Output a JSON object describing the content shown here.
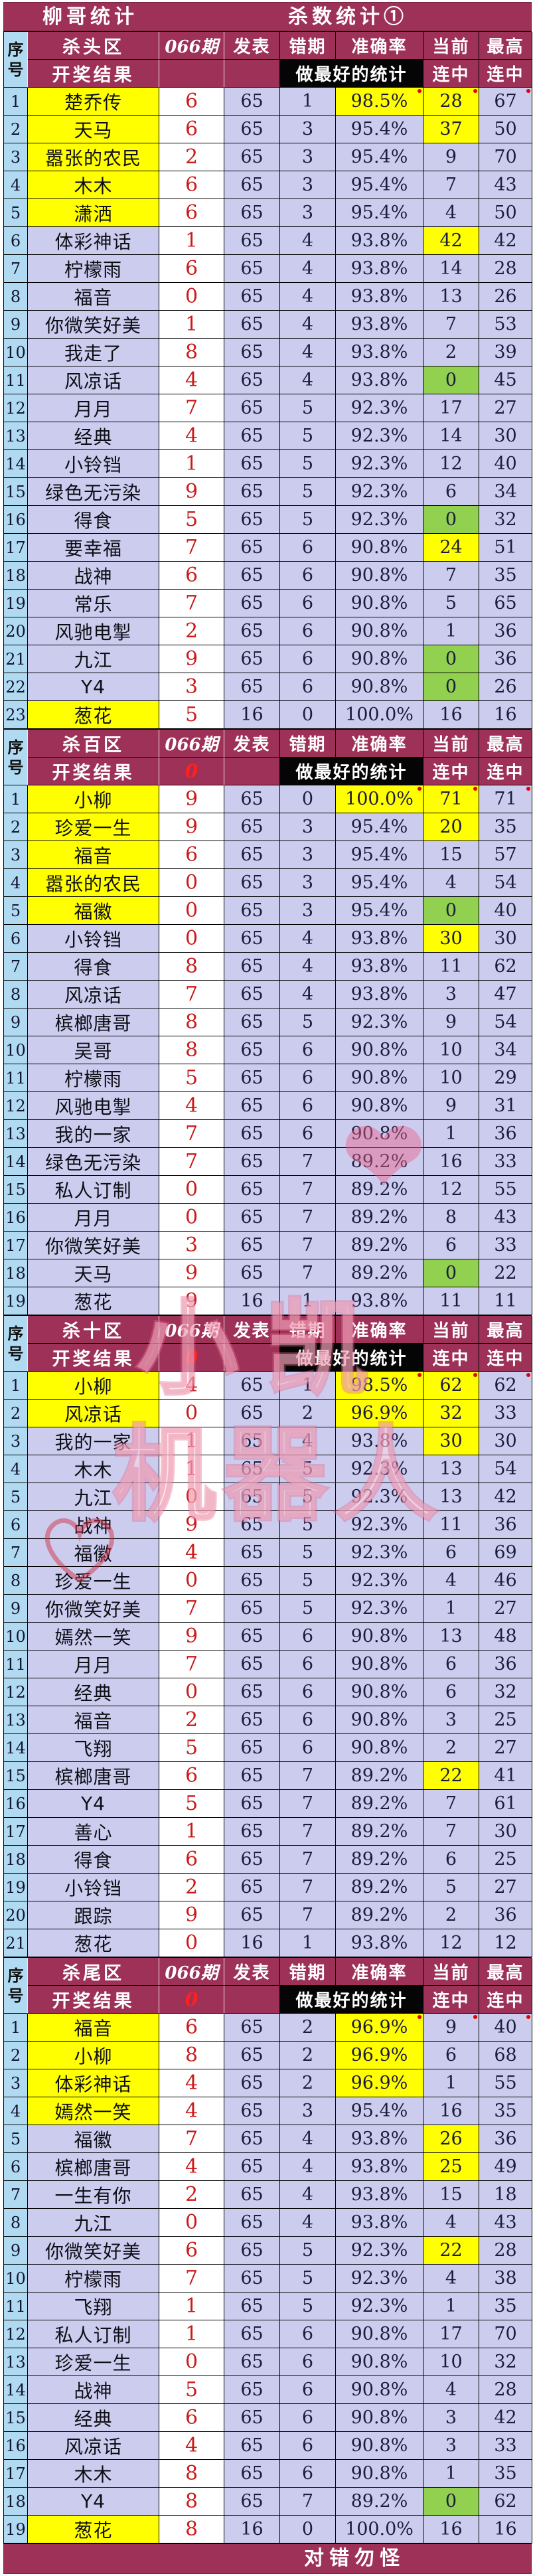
{
  "title_bar": {
    "left": "柳哥统计",
    "right": "杀数统计①"
  },
  "footer": {
    "text": "对错勿怪"
  },
  "watermark": {
    "line1": "小凯",
    "line2": "机器人",
    "heart": "❤"
  },
  "colors": {
    "header_bg": "#9D3157",
    "row_bg": "#CCCCEF",
    "seq_bg": "#B0DAF2",
    "highlight_yellow": "#FFFF00",
    "highlight_green": "#92D050",
    "kill_value_red": "#CC1A1A",
    "stat_note_bg": "#050505"
  },
  "header_labels": {
    "seq_top": "序",
    "seq_bottom": "号",
    "result": "开奖结果",
    "publish": "发表",
    "wrong": "错期",
    "accuracy": "准确率",
    "stat_note": "做最好的统计",
    "current": "当前",
    "max": "最高",
    "streak": "连中"
  },
  "sections": [
    {
      "zone": "杀头区",
      "period": "066期",
      "result_value": "",
      "rows": [
        [
          1,
          "楚乔传",
          "6",
          65,
          1,
          "98.5%",
          28,
          67,
          1,
          1,
          "y"
        ],
        [
          2,
          "天马",
          "6",
          65,
          3,
          "95.4%",
          37,
          50,
          1,
          0,
          "y"
        ],
        [
          3,
          "嚣张的农民",
          "2",
          65,
          3,
          "95.4%",
          9,
          70,
          1,
          0,
          ""
        ],
        [
          4,
          "木木",
          "6",
          65,
          3,
          "95.4%",
          7,
          43,
          1,
          0,
          ""
        ],
        [
          5,
          "潇洒",
          "6",
          65,
          3,
          "95.4%",
          4,
          50,
          1,
          0,
          ""
        ],
        [
          6,
          "体彩神话",
          "1",
          65,
          4,
          "93.8%",
          42,
          42,
          0,
          0,
          "y"
        ],
        [
          7,
          "柠檬雨",
          "6",
          65,
          4,
          "93.8%",
          14,
          28,
          0,
          0,
          ""
        ],
        [
          8,
          "福音",
          "0",
          65,
          4,
          "93.8%",
          13,
          26,
          0,
          0,
          ""
        ],
        [
          9,
          "你微笑好美",
          "1",
          65,
          4,
          "93.8%",
          7,
          53,
          0,
          0,
          ""
        ],
        [
          10,
          "我走了",
          "8",
          65,
          4,
          "93.8%",
          2,
          39,
          0,
          0,
          ""
        ],
        [
          11,
          "风凉话",
          "4",
          65,
          4,
          "93.8%",
          0,
          45,
          0,
          0,
          "g"
        ],
        [
          12,
          "月月",
          "7",
          65,
          5,
          "92.3%",
          17,
          27,
          0,
          0,
          ""
        ],
        [
          13,
          "经典",
          "4",
          65,
          5,
          "92.3%",
          14,
          30,
          0,
          0,
          ""
        ],
        [
          14,
          "小铃铛",
          "1",
          65,
          5,
          "92.3%",
          12,
          40,
          0,
          0,
          ""
        ],
        [
          15,
          "绿色无污染",
          "9",
          65,
          5,
          "92.3%",
          6,
          34,
          0,
          0,
          ""
        ],
        [
          16,
          "得食",
          "5",
          65,
          5,
          "92.3%",
          0,
          32,
          0,
          0,
          "g"
        ],
        [
          17,
          "要幸福",
          "7",
          65,
          6,
          "90.8%",
          24,
          51,
          0,
          0,
          "y"
        ],
        [
          18,
          "战神",
          "6",
          65,
          6,
          "90.8%",
          7,
          35,
          0,
          0,
          ""
        ],
        [
          19,
          "常乐",
          "7",
          65,
          6,
          "90.8%",
          5,
          65,
          0,
          0,
          ""
        ],
        [
          20,
          "风驰电掣",
          "2",
          65,
          6,
          "90.8%",
          1,
          36,
          0,
          0,
          ""
        ],
        [
          21,
          "九江",
          "9",
          65,
          6,
          "90.8%",
          0,
          36,
          0,
          0,
          "g"
        ],
        [
          22,
          "Y4",
          "3",
          65,
          6,
          "90.8%",
          0,
          26,
          0,
          0,
          "g"
        ],
        [
          23,
          "葱花",
          "5",
          16,
          0,
          "100.0%",
          16,
          16,
          1,
          0,
          ""
        ]
      ]
    },
    {
      "zone": "杀百区",
      "period": "066期",
      "result_value": "0",
      "rows": [
        [
          1,
          "小柳",
          "9",
          65,
          0,
          "100.0%",
          71,
          71,
          1,
          1,
          "y"
        ],
        [
          2,
          "珍爱一生",
          "9",
          65,
          3,
          "95.4%",
          20,
          35,
          1,
          0,
          "y"
        ],
        [
          3,
          "福音",
          "6",
          65,
          3,
          "95.4%",
          15,
          57,
          1,
          0,
          ""
        ],
        [
          4,
          "嚣张的农民",
          "0",
          65,
          3,
          "95.4%",
          4,
          54,
          1,
          0,
          ""
        ],
        [
          5,
          "福徽",
          "0",
          65,
          3,
          "95.4%",
          0,
          40,
          1,
          0,
          "g"
        ],
        [
          6,
          "小铃铛",
          "0",
          65,
          4,
          "93.8%",
          30,
          30,
          0,
          0,
          "y"
        ],
        [
          7,
          "得食",
          "8",
          65,
          4,
          "93.8%",
          11,
          62,
          0,
          0,
          ""
        ],
        [
          8,
          "风凉话",
          "7",
          65,
          4,
          "93.8%",
          3,
          47,
          0,
          0,
          ""
        ],
        [
          9,
          "槟榔唐哥",
          "8",
          65,
          5,
          "92.3%",
          9,
          54,
          0,
          0,
          ""
        ],
        [
          10,
          "吴哥",
          "8",
          65,
          6,
          "90.8%",
          10,
          34,
          0,
          0,
          ""
        ],
        [
          11,
          "柠檬雨",
          "5",
          65,
          6,
          "90.8%",
          10,
          29,
          0,
          0,
          ""
        ],
        [
          12,
          "风驰电掣",
          "4",
          65,
          6,
          "90.8%",
          9,
          31,
          0,
          0,
          ""
        ],
        [
          13,
          "我的一家",
          "7",
          65,
          6,
          "90.8%",
          1,
          36,
          0,
          0,
          ""
        ],
        [
          14,
          "绿色无污染",
          "7",
          65,
          7,
          "89.2%",
          16,
          33,
          0,
          0,
          ""
        ],
        [
          15,
          "私人订制",
          "0",
          65,
          7,
          "89.2%",
          12,
          55,
          0,
          0,
          ""
        ],
        [
          16,
          "月月",
          "0",
          65,
          7,
          "89.2%",
          8,
          43,
          0,
          0,
          ""
        ],
        [
          17,
          "你微笑好美",
          "3",
          65,
          7,
          "89.2%",
          6,
          33,
          0,
          0,
          ""
        ],
        [
          18,
          "天马",
          "9",
          65,
          7,
          "89.2%",
          0,
          22,
          0,
          0,
          "g"
        ],
        [
          19,
          "葱花",
          "9",
          16,
          1,
          "93.8%",
          11,
          11,
          0,
          0,
          ""
        ]
      ]
    },
    {
      "zone": "杀十区",
      "period": "066期",
      "result_value": "0",
      "rows": [
        [
          1,
          "小柳",
          "4",
          65,
          1,
          "98.5%",
          62,
          62,
          1,
          1,
          "y"
        ],
        [
          2,
          "风凉话",
          "0",
          65,
          2,
          "96.9%",
          32,
          33,
          1,
          1,
          "y"
        ],
        [
          3,
          "我的一家",
          "1",
          65,
          4,
          "93.8%",
          30,
          30,
          0,
          0,
          "y"
        ],
        [
          4,
          "木木",
          "1",
          65,
          5,
          "92.3%",
          13,
          54,
          0,
          0,
          ""
        ],
        [
          5,
          "九江",
          "0",
          65,
          5,
          "92.3%",
          13,
          42,
          0,
          0,
          ""
        ],
        [
          6,
          "战神",
          "9",
          65,
          5,
          "92.3%",
          11,
          36,
          0,
          0,
          ""
        ],
        [
          7,
          "福徽",
          "4",
          65,
          5,
          "92.3%",
          6,
          69,
          0,
          0,
          ""
        ],
        [
          8,
          "珍爱一生",
          "0",
          65,
          5,
          "92.3%",
          4,
          46,
          0,
          0,
          ""
        ],
        [
          9,
          "你微笑好美",
          "7",
          65,
          5,
          "92.3%",
          1,
          27,
          0,
          0,
          ""
        ],
        [
          10,
          "嫣然一笑",
          "9",
          65,
          6,
          "90.8%",
          13,
          48,
          0,
          0,
          ""
        ],
        [
          11,
          "月月",
          "7",
          65,
          6,
          "90.8%",
          6,
          36,
          0,
          0,
          ""
        ],
        [
          12,
          "经典",
          "0",
          65,
          6,
          "90.8%",
          6,
          32,
          0,
          0,
          ""
        ],
        [
          13,
          "福音",
          "2",
          65,
          6,
          "90.8%",
          3,
          25,
          0,
          0,
          ""
        ],
        [
          14,
          "飞翔",
          "5",
          65,
          6,
          "90.8%",
          2,
          27,
          0,
          0,
          ""
        ],
        [
          15,
          "槟榔唐哥",
          "6",
          65,
          7,
          "89.2%",
          22,
          41,
          0,
          0,
          "y"
        ],
        [
          16,
          "Y4",
          "5",
          65,
          7,
          "89.2%",
          7,
          61,
          0,
          0,
          ""
        ],
        [
          17,
          "善心",
          "1",
          65,
          7,
          "89.2%",
          7,
          30,
          0,
          0,
          ""
        ],
        [
          18,
          "得食",
          "6",
          65,
          7,
          "89.2%",
          6,
          25,
          0,
          0,
          ""
        ],
        [
          19,
          "小铃铛",
          "2",
          65,
          7,
          "89.2%",
          5,
          27,
          0,
          0,
          ""
        ],
        [
          20,
          "跟踪",
          "9",
          65,
          7,
          "89.2%",
          2,
          36,
          0,
          0,
          ""
        ],
        [
          21,
          "葱花",
          "0",
          16,
          1,
          "93.8%",
          12,
          12,
          0,
          0,
          ""
        ]
      ]
    },
    {
      "zone": "杀尾区",
      "period": "066期",
      "result_value": "0",
      "rows": [
        [
          1,
          "福音",
          "6",
          65,
          2,
          "96.9%",
          9,
          40,
          1,
          1,
          ""
        ],
        [
          2,
          "小柳",
          "8",
          65,
          2,
          "96.9%",
          6,
          68,
          1,
          1,
          ""
        ],
        [
          3,
          "体彩神话",
          "4",
          65,
          2,
          "96.9%",
          1,
          55,
          1,
          1,
          ""
        ],
        [
          4,
          "嫣然一笑",
          "4",
          65,
          3,
          "95.4%",
          16,
          35,
          1,
          0,
          ""
        ],
        [
          5,
          "福徽",
          "7",
          65,
          4,
          "93.8%",
          26,
          36,
          0,
          0,
          "y"
        ],
        [
          6,
          "槟榔唐哥",
          "4",
          65,
          4,
          "93.8%",
          25,
          49,
          0,
          0,
          "y"
        ],
        [
          7,
          "一生有你",
          "2",
          65,
          4,
          "93.8%",
          15,
          18,
          0,
          0,
          ""
        ],
        [
          8,
          "九江",
          "0",
          65,
          4,
          "93.8%",
          4,
          43,
          0,
          0,
          ""
        ],
        [
          9,
          "你微笑好美",
          "6",
          65,
          5,
          "92.3%",
          22,
          28,
          0,
          0,
          "y"
        ],
        [
          10,
          "柠檬雨",
          "7",
          65,
          5,
          "92.3%",
          4,
          38,
          0,
          0,
          ""
        ],
        [
          11,
          "飞翔",
          "1",
          65,
          5,
          "92.3%",
          1,
          35,
          0,
          0,
          ""
        ],
        [
          12,
          "私人订制",
          "1",
          65,
          6,
          "90.8%",
          17,
          70,
          0,
          0,
          ""
        ],
        [
          13,
          "珍爱一生",
          "0",
          65,
          6,
          "90.8%",
          10,
          32,
          0,
          0,
          ""
        ],
        [
          14,
          "战神",
          "5",
          65,
          6,
          "90.8%",
          4,
          28,
          0,
          0,
          ""
        ],
        [
          15,
          "经典",
          "6",
          65,
          6,
          "90.8%",
          3,
          42,
          0,
          0,
          ""
        ],
        [
          16,
          "风凉话",
          "4",
          65,
          6,
          "90.8%",
          3,
          33,
          0,
          0,
          ""
        ],
        [
          17,
          "木木",
          "8",
          65,
          6,
          "90.8%",
          1,
          35,
          0,
          0,
          ""
        ],
        [
          18,
          "Y4",
          "8",
          65,
          7,
          "89.2%",
          0,
          62,
          0,
          0,
          "g"
        ],
        [
          19,
          "葱花",
          "8",
          16,
          0,
          "100.0%",
          16,
          16,
          1,
          0,
          ""
        ]
      ]
    }
  ]
}
